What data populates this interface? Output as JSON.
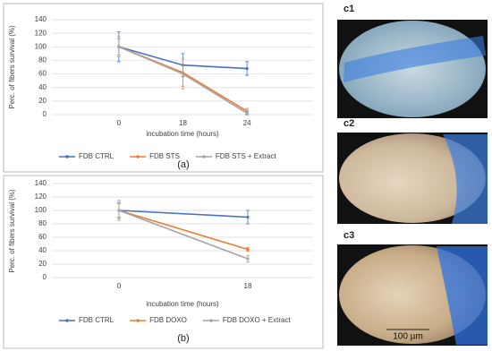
{
  "chart_data": [
    {
      "type": "line",
      "y_label": "Perc. of fibers survival (%)",
      "x_label": "incubation time (hours)",
      "panel": "(a)",
      "categories": [
        "0",
        "18",
        "24"
      ],
      "series": [
        {
          "name": "FDB CTRL",
          "color": "#4472c4",
          "values": [
            100,
            73,
            68
          ],
          "errors": [
            22,
            17,
            10
          ]
        },
        {
          "name": "FDB STS",
          "color": "#ed7d31",
          "values": [
            100,
            62,
            5
          ],
          "errors": [
            12,
            20,
            4
          ]
        },
        {
          "name": "FDB STS + Extract",
          "color": "#a5a5a5",
          "values": [
            100,
            60,
            2
          ],
          "errors": [
            15,
            22,
            3
          ]
        }
      ],
      "ylim": [
        0,
        140
      ],
      "yticks": [
        0,
        20,
        40,
        60,
        80,
        100,
        120,
        140
      ],
      "grid": true,
      "legend": "bottom"
    },
    {
      "type": "line",
      "y_label": "Perc. of fibers survival (%)",
      "x_label": "incubation time (hours)",
      "panel": "(b)",
      "categories": [
        "0",
        "18"
      ],
      "series": [
        {
          "name": "FDB CTRL",
          "color": "#4472c4",
          "values": [
            100,
            90
          ],
          "errors": [
            12,
            10
          ]
        },
        {
          "name": "FDB DOXO",
          "color": "#ed7d31",
          "values": [
            100,
            42
          ],
          "errors": [
            10,
            3
          ]
        },
        {
          "name": "FDB DOXO +  Extract",
          "color": "#a5a5a5",
          "values": [
            100,
            28
          ],
          "errors": [
            15,
            5
          ]
        }
      ],
      "ylim": [
        0,
        140
      ],
      "yticks": [
        0,
        20,
        40,
        60,
        80,
        100,
        120,
        140
      ],
      "grid": true,
      "legend": "bottom"
    }
  ],
  "images": [
    {
      "label": "c1"
    },
    {
      "label": "c2"
    },
    {
      "label": "c3",
      "scale_bar": "100 µm"
    }
  ]
}
